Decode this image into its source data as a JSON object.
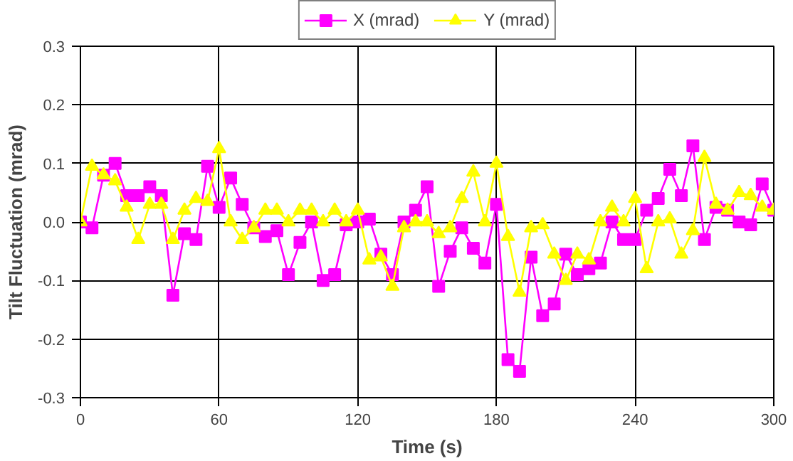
{
  "chart_data": {
    "type": "line",
    "xlabel": "Time (s)",
    "ylabel": "Tilt Fluctuation (mrad)",
    "x": [
      0,
      5,
      10,
      15,
      20,
      25,
      30,
      35,
      40,
      45,
      50,
      55,
      60,
      65,
      70,
      75,
      80,
      85,
      90,
      95,
      100,
      105,
      110,
      115,
      120,
      125,
      130,
      135,
      140,
      145,
      150,
      155,
      160,
      165,
      170,
      175,
      180,
      185,
      190,
      195,
      200,
      205,
      210,
      215,
      220,
      225,
      230,
      235,
      240,
      245,
      250,
      255,
      260,
      265,
      270,
      275,
      280,
      285,
      290,
      295,
      300
    ],
    "series": [
      {
        "name": "X (mrad)",
        "color": "#ff00ff",
        "marker": "square",
        "values": [
          0.0,
          -0.01,
          0.08,
          0.1,
          0.045,
          0.045,
          0.06,
          0.045,
          -0.125,
          -0.02,
          -0.03,
          0.095,
          0.025,
          0.075,
          0.03,
          -0.01,
          -0.025,
          -0.015,
          -0.09,
          -0.035,
          0.0,
          -0.1,
          -0.09,
          -0.005,
          0.0,
          0.005,
          -0.055,
          -0.09,
          0.0,
          0.02,
          0.06,
          -0.11,
          -0.05,
          -0.01,
          -0.045,
          -0.07,
          0.03,
          -0.235,
          -0.255,
          -0.06,
          -0.16,
          -0.14,
          -0.055,
          -0.09,
          -0.08,
          -0.07,
          0.0,
          -0.03,
          -0.03,
          0.02,
          0.04,
          0.09,
          0.045,
          0.13,
          -0.03,
          0.025,
          0.02,
          0.0,
          -0.005,
          0.065,
          0.02
        ]
      },
      {
        "name": "Y (mrad)",
        "color": "#ffff00",
        "marker": "triangle",
        "values": [
          0.0,
          0.095,
          0.08,
          0.07,
          0.025,
          -0.03,
          0.03,
          0.03,
          -0.03,
          0.02,
          0.04,
          0.035,
          0.125,
          0.0,
          -0.03,
          -0.01,
          0.02,
          0.02,
          0.0,
          0.02,
          0.02,
          0.0,
          0.02,
          0.0,
          0.02,
          -0.065,
          -0.06,
          -0.11,
          -0.01,
          0.0,
          0.0,
          -0.02,
          -0.01,
          0.04,
          0.085,
          0.0,
          0.1,
          -0.025,
          -0.12,
          -0.01,
          -0.005,
          -0.055,
          -0.1,
          -0.055,
          -0.065,
          0.0,
          0.025,
          0.0,
          0.04,
          -0.08,
          0.0,
          0.005,
          -0.055,
          -0.015,
          0.11,
          0.03,
          0.02,
          0.05,
          0.045,
          0.025,
          0.02
        ]
      }
    ],
    "xlim": [
      0,
      300
    ],
    "xticks": [
      0,
      60,
      120,
      180,
      240,
      300
    ],
    "ylim": [
      -0.3,
      0.3
    ],
    "yticks": [
      {
        "value": -0.3,
        "label": "-0.3"
      },
      {
        "value": -0.2,
        "label": "-0.2"
      },
      {
        "value": -0.1,
        "label": "-0.1"
      },
      {
        "value": 0,
        "label": "0.0"
      },
      {
        "value": 0.1,
        "label": "0.1"
      },
      {
        "value": 0.2,
        "label": "0.2"
      },
      {
        "value": 0.3,
        "label": "0.3"
      }
    ],
    "grid": true,
    "legend": "top",
    "line_style": "solid"
  }
}
